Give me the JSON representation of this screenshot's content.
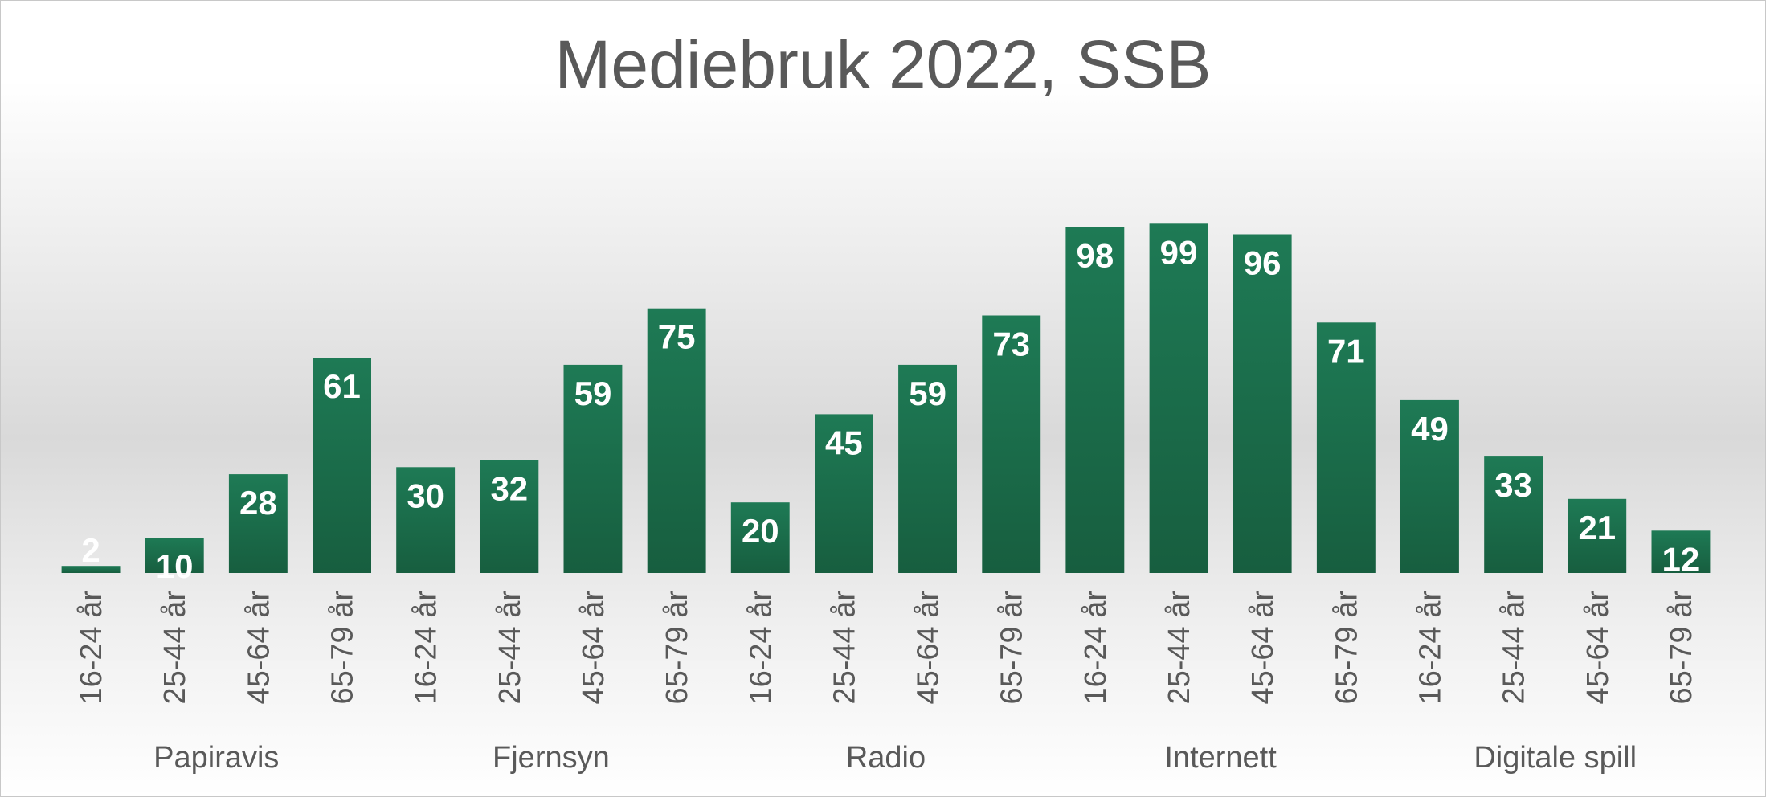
{
  "chart_data": {
    "type": "bar",
    "title": "Mediebruk 2022, SSB",
    "xlabel": "",
    "ylabel": "",
    "ylim": [
      0,
      100
    ],
    "grid": false,
    "legend": "none",
    "colors": {
      "bar": "#1e7a55",
      "bar_dark": "#175e3f",
      "label": "#ffffff",
      "text": "#595959"
    },
    "groups": [
      {
        "name": "Papiravis",
        "categories": [
          "16-24 år",
          "25-44 år",
          "45-64 år",
          "65-79 år"
        ],
        "values": [
          2,
          10,
          28,
          61
        ]
      },
      {
        "name": "Fjernsyn",
        "categories": [
          "16-24 år",
          "25-44 år",
          "45-64 år",
          "65-79 år"
        ],
        "values": [
          30,
          32,
          59,
          75
        ]
      },
      {
        "name": "Radio",
        "categories": [
          "16-24 år",
          "25-44 år",
          "45-64 år",
          "65-79 år"
        ],
        "values": [
          20,
          45,
          59,
          73
        ]
      },
      {
        "name": "Internett",
        "categories": [
          "16-24 år",
          "25-44 år",
          "45-64 år",
          "65-79 år"
        ],
        "values": [
          98,
          99,
          96,
          71
        ]
      },
      {
        "name": "Digitale spill",
        "categories": [
          "16-24 år",
          "25-44 år",
          "45-64 år",
          "65-79 år"
        ],
        "values": [
          49,
          33,
          21,
          12
        ]
      }
    ]
  }
}
